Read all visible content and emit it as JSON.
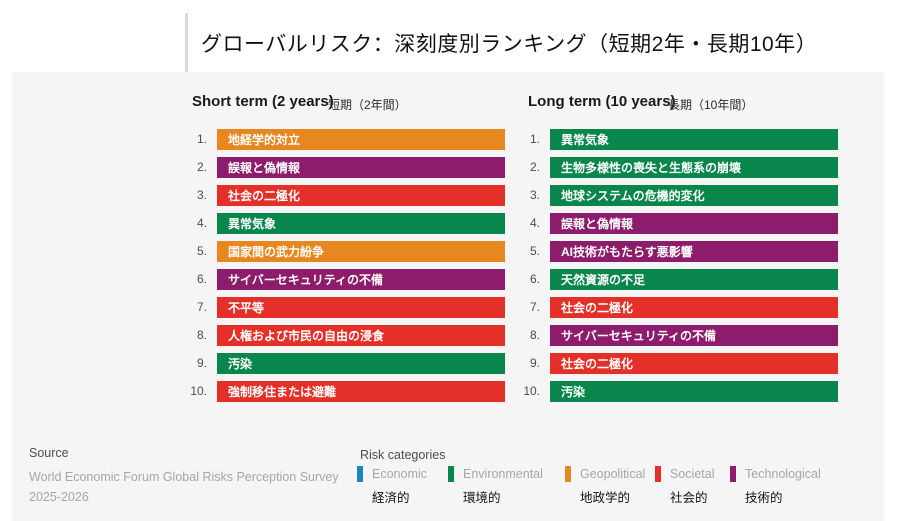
{
  "title": "グローバルリスク：深刻度別ランキング（短期2年・長期10年）",
  "colors": {
    "economic": "#1984C6",
    "environmental": "#08864B",
    "geopolitical": "#E8871F",
    "societal": "#E53029",
    "technological": "#8E1C6C"
  },
  "columns": [
    {
      "title_en": "Short term (2 years)",
      "title_ja": "短期（2年間）",
      "items": [
        {
          "rank": "1.",
          "label": "地経学的対立",
          "category": "geopolitical"
        },
        {
          "rank": "2.",
          "label": "誤報と偽情報",
          "category": "technological"
        },
        {
          "rank": "3.",
          "label": "社会の二極化",
          "category": "societal"
        },
        {
          "rank": "4.",
          "label": "異常気象",
          "category": "environmental"
        },
        {
          "rank": "5.",
          "label": "国家間の武力紛争",
          "category": "geopolitical"
        },
        {
          "rank": "6.",
          "label": "サイバーセキュリティの不備",
          "category": "technological"
        },
        {
          "rank": "7.",
          "label": "不平等",
          "category": "societal"
        },
        {
          "rank": "8.",
          "label": "人権および市民の自由の浸食",
          "category": "societal"
        },
        {
          "rank": "9.",
          "label": "汚染",
          "category": "environmental"
        },
        {
          "rank": "10.",
          "label": "強制移住または避難",
          "category": "societal"
        }
      ]
    },
    {
      "title_en": "Long term (10 years)",
      "title_ja": "長期（10年間）",
      "items": [
        {
          "rank": "1.",
          "label": "異常気象",
          "category": "environmental"
        },
        {
          "rank": "2.",
          "label": "生物多様性の喪失と生態系の崩壊",
          "category": "environmental"
        },
        {
          "rank": "3.",
          "label": "地球システムの危機的変化",
          "category": "environmental"
        },
        {
          "rank": "4.",
          "label": "誤報と偽情報",
          "category": "technological"
        },
        {
          "rank": "5.",
          "label": "AI技術がもたらす悪影響",
          "category": "technological"
        },
        {
          "rank": "6.",
          "label": "天然資源の不足",
          "category": "environmental"
        },
        {
          "rank": "7.",
          "label": "社会の二極化",
          "category": "societal"
        },
        {
          "rank": "8.",
          "label": "サイバーセキュリティの不備",
          "category": "technological"
        },
        {
          "rank": "9.",
          "label": "社会の二極化",
          "category": "societal"
        },
        {
          "rank": "10.",
          "label": "汚染",
          "category": "environmental"
        }
      ]
    }
  ],
  "footer": {
    "source_label": "Source",
    "source_line1": "World Economic Forum Global Risks Perception Survey",
    "source_line2": "2025-2026",
    "legend_title": "Risk categories",
    "legend": [
      {
        "label_en": "Economic",
        "label_ja": "経済的",
        "category": "economic"
      },
      {
        "label_en": "Environmental",
        "label_ja": "環境的",
        "category": "environmental"
      },
      {
        "label_en": "Geopolitical",
        "label_ja": "地政学的",
        "category": "geopolitical"
      },
      {
        "label_en": "Societal",
        "label_ja": "社会的",
        "category": "societal"
      },
      {
        "label_en": "Technological",
        "label_ja": "技術的",
        "category": "technological"
      }
    ]
  },
  "chart_data": {
    "type": "table",
    "title": "グローバルリスク：深刻度別ランキング（短期2年・長期10年）",
    "legend_position": "bottom",
    "legend": [
      "Economic",
      "Environmental",
      "Geopolitical",
      "Societal",
      "Technological"
    ],
    "series": [
      {
        "name": "Short term (2 years)",
        "values": [
          {
            "rank": 1,
            "risk": "地経学的対立",
            "category": "Geopolitical"
          },
          {
            "rank": 2,
            "risk": "誤報と偽情報",
            "category": "Technological"
          },
          {
            "rank": 3,
            "risk": "社会の二極化",
            "category": "Societal"
          },
          {
            "rank": 4,
            "risk": "異常気象",
            "category": "Environmental"
          },
          {
            "rank": 5,
            "risk": "国家間の武力紛争",
            "category": "Geopolitical"
          },
          {
            "rank": 6,
            "risk": "サイバーセキュリティの不備",
            "category": "Technological"
          },
          {
            "rank": 7,
            "risk": "不平等",
            "category": "Societal"
          },
          {
            "rank": 8,
            "risk": "人権および市民の自由の浸食",
            "category": "Societal"
          },
          {
            "rank": 9,
            "risk": "汚染",
            "category": "Environmental"
          },
          {
            "rank": 10,
            "risk": "強制移住または避難",
            "category": "Societal"
          }
        ]
      },
      {
        "name": "Long term (10 years)",
        "values": [
          {
            "rank": 1,
            "risk": "異常気象",
            "category": "Environmental"
          },
          {
            "rank": 2,
            "risk": "生物多様性の喪失と生態系の崩壊",
            "category": "Environmental"
          },
          {
            "rank": 3,
            "risk": "地球システムの危機的変化",
            "category": "Environmental"
          },
          {
            "rank": 4,
            "risk": "誤報と偽情報",
            "category": "Technological"
          },
          {
            "rank": 5,
            "risk": "AI技術がもたらす悪影響",
            "category": "Technological"
          },
          {
            "rank": 6,
            "risk": "天然資源の不足",
            "category": "Environmental"
          },
          {
            "rank": 7,
            "risk": "社会の二極化",
            "category": "Societal"
          },
          {
            "rank": 8,
            "risk": "サイバーセキュリティの不備",
            "category": "Technological"
          },
          {
            "rank": 9,
            "risk": "社会の二極化",
            "category": "Societal"
          },
          {
            "rank": 10,
            "risk": "汚染",
            "category": "Environmental"
          }
        ]
      }
    ]
  }
}
